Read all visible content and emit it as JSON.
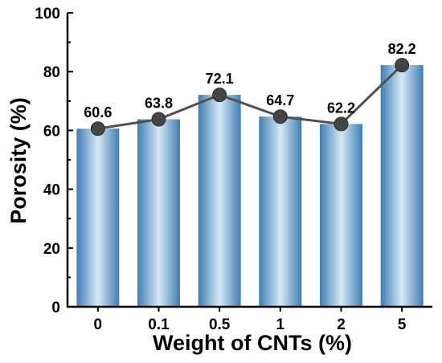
{
  "chart_data": {
    "type": "bar",
    "categories": [
      "0",
      "0.1",
      "0.5",
      "1",
      "2",
      "5"
    ],
    "values": [
      60.6,
      63.8,
      72.1,
      64.7,
      62.2,
      82.2
    ],
    "data_labels": [
      "60.6",
      "63.8",
      "72.1",
      "64.7",
      "62.2",
      "82.2"
    ],
    "overlay": "line-with-markers",
    "xlabel": "Weight of CNTs (%)",
    "ylabel": "Porosity (%)",
    "ylim": [
      0,
      100
    ],
    "yticks": [
      "0",
      "20",
      "40",
      "60",
      "80",
      "100"
    ],
    "grid": false,
    "colors": {
      "bar_dark": "#3d7fb3",
      "bar_light": "#d7e8f5",
      "line": "#505050",
      "marker": "#454545",
      "axis": "#000000"
    }
  }
}
